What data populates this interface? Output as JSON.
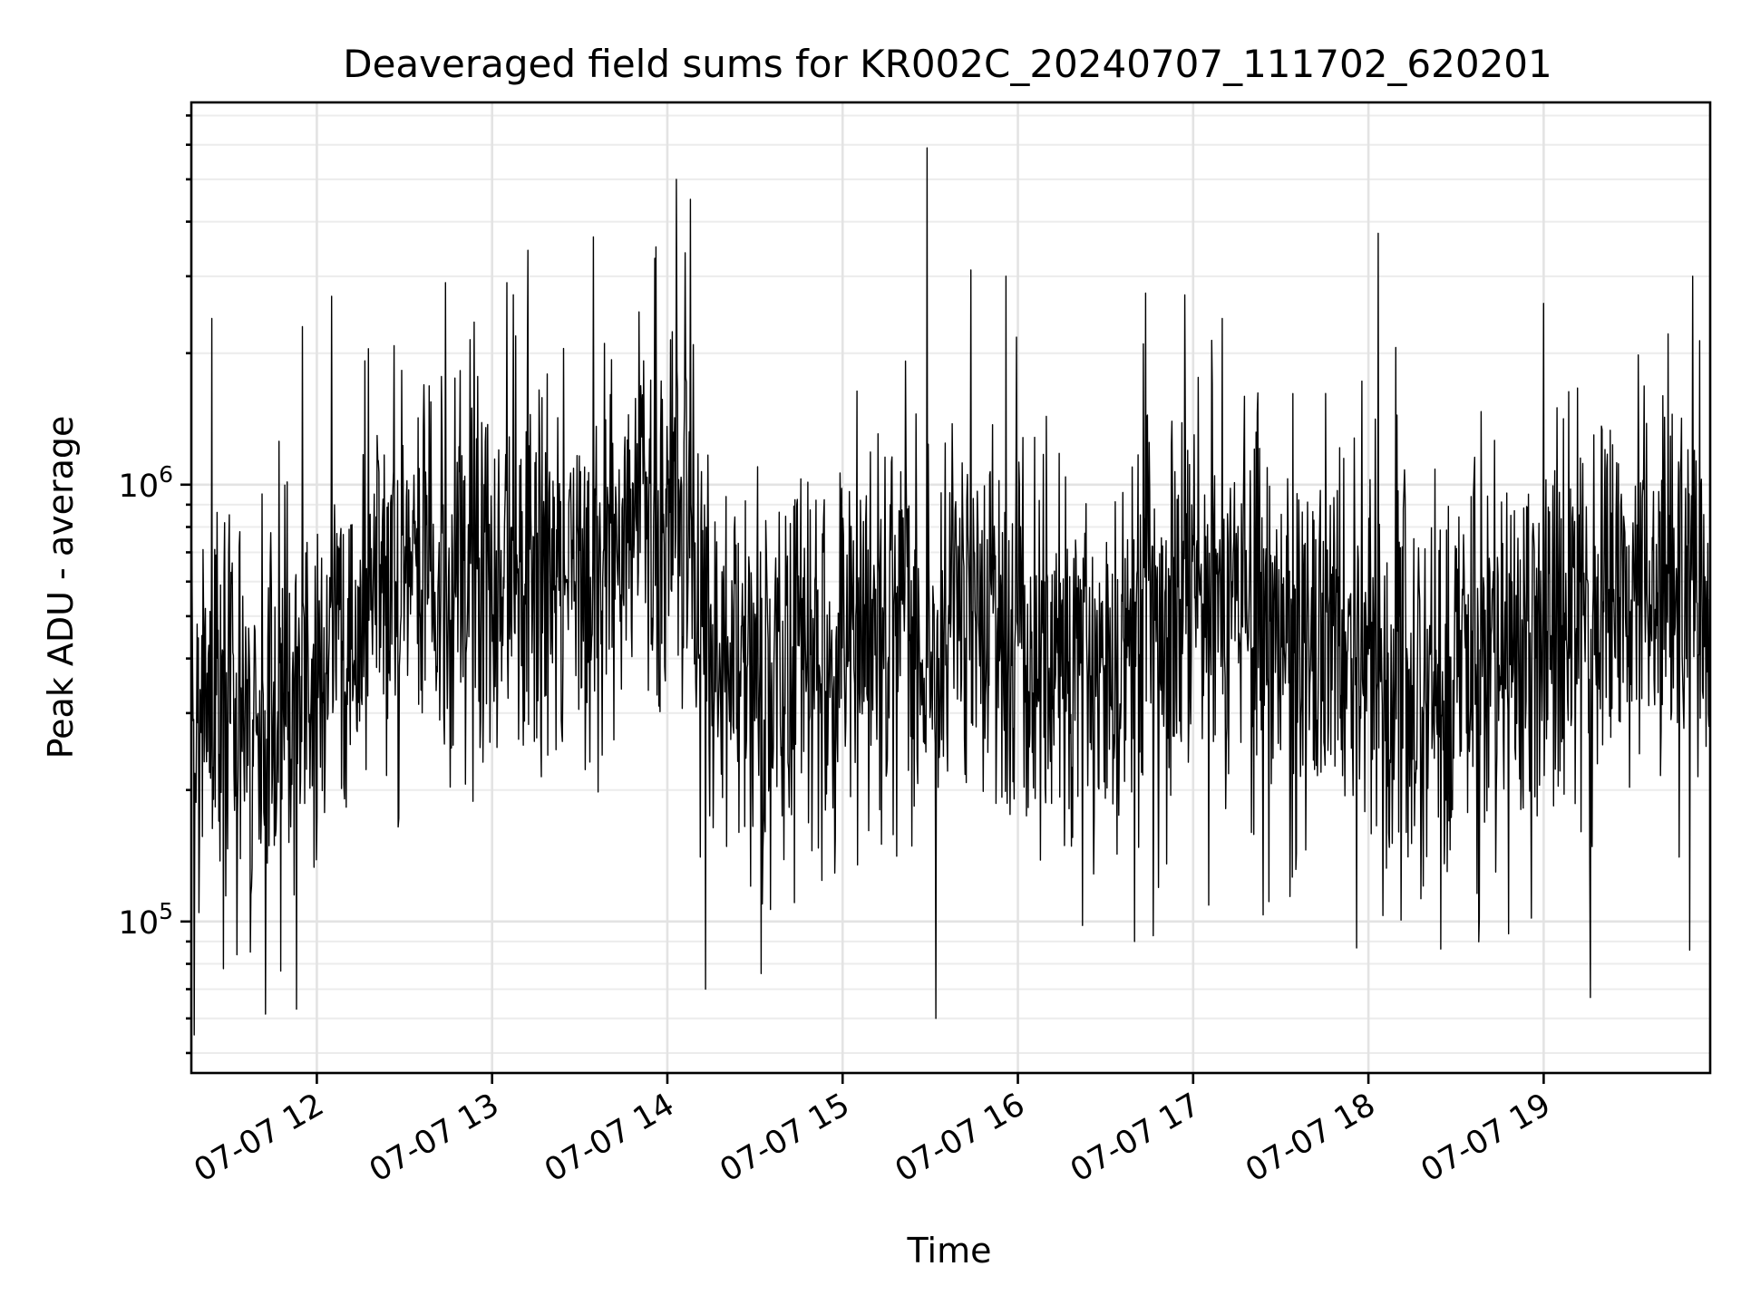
{
  "chart_data": {
    "type": "line",
    "title": "Deaveraged field sums for KR002C_20240707_111702_620201",
    "xlabel": "Time",
    "ylabel": "Peak ADU - average",
    "x_start": "2024-07-07T11:17:02",
    "x_end": "2024-07-07T19:57:00",
    "xlim": [
      "2024-07-07T11:17:02",
      "2024-07-07T19:57:00"
    ],
    "x_ticks": [
      "07-07 12",
      "07-07 13",
      "07-07 14",
      "07-07 15",
      "07-07 16",
      "07-07 17",
      "07-07 18",
      "07-07 19"
    ],
    "x_tick_times": [
      "2024-07-07T12:00:00",
      "2024-07-07T13:00:00",
      "2024-07-07T14:00:00",
      "2024-07-07T15:00:00",
      "2024-07-07T16:00:00",
      "2024-07-07T17:00:00",
      "2024-07-07T18:00:00",
      "2024-07-07T19:00:00"
    ],
    "y_scale": "log",
    "ylim": [
      45000,
      7500000
    ],
    "y_ticks": [
      {
        "base": "10",
        "exp": "5",
        "value": 100000
      },
      {
        "base": "10",
        "exp": "6",
        "value": 1000000
      }
    ],
    "grid": true,
    "legend": "none",
    "line_color": "#000000",
    "series": [
      {
        "x": [
          "2024-07-07T11:17:02",
          "2024-07-07T11:40:00",
          "2024-07-07T11:50:00",
          "2024-07-07T12:10:00",
          "2024-07-07T12:30:00",
          "2024-07-07T12:50:00",
          "2024-07-07T13:10:00",
          "2024-07-07T13:30:00",
          "2024-07-07T13:50:00",
          "2024-07-07T14:03:00",
          "2024-07-07T14:12:00",
          "2024-07-07T14:30:00",
          "2024-07-07T14:50:00",
          "2024-07-07T15:10:00",
          "2024-07-07T15:30:00",
          "2024-07-07T15:50:00",
          "2024-07-07T16:10:00",
          "2024-07-07T16:30:00",
          "2024-07-07T16:50:00",
          "2024-07-07T17:10:00",
          "2024-07-07T17:30:00",
          "2024-07-07T17:50:00",
          "2024-07-07T18:10:00",
          "2024-07-07T18:30:00",
          "2024-07-07T18:50:00",
          "2024-07-07T19:10:00",
          "2024-07-07T19:30:00",
          "2024-07-07T19:50:00",
          "2024-07-07T19:57:00"
        ],
        "values": [
          350000,
          280000,
          300000,
          420000,
          620000,
          700000,
          650000,
          720000,
          800000,
          900000,
          480000,
          380000,
          400000,
          420000,
          450000,
          520000,
          380000,
          400000,
          480000,
          560000,
          480000,
          430000,
          380000,
          360000,
          450000,
          520000,
          560000,
          620000,
          600000
        ],
        "spikes_high": [
          {
            "x": "2024-07-07T15:29:00",
            "value": 5900000
          },
          {
            "x": "2024-07-07T14:03:00",
            "value": 5000000
          },
          {
            "x": "2024-07-07T13:56:00",
            "value": 3500000
          },
          {
            "x": "2024-07-07T19:51:00",
            "value": 3000000
          },
          {
            "x": "2024-07-07T15:56:00",
            "value": 3000000
          },
          {
            "x": "2024-07-07T15:44:00",
            "value": 3100000
          },
          {
            "x": "2024-07-07T12:44:00",
            "value": 2900000
          },
          {
            "x": "2024-07-07T13:05:00",
            "value": 2900000
          },
          {
            "x": "2024-07-07T19:00:00",
            "value": 2600000
          },
          {
            "x": "2024-07-07T11:55:00",
            "value": 2300000
          },
          {
            "x": "2024-07-07T12:05:00",
            "value": 2700000
          },
          {
            "x": "2024-07-07T11:24:00",
            "value": 2400000
          },
          {
            "x": "2024-07-07T17:10:00",
            "value": 2400000
          },
          {
            "x": "2024-07-07T16:43:00",
            "value": 2100000
          }
        ],
        "spikes_low": [
          {
            "x": "2024-07-07T15:32:00",
            "value": 60000
          },
          {
            "x": "2024-07-07T11:53:00",
            "value": 63000
          },
          {
            "x": "2024-07-07T19:16:00",
            "value": 67000
          },
          {
            "x": "2024-07-07T14:13:00",
            "value": 70000
          },
          {
            "x": "2024-07-07T11:18:00",
            "value": 55000
          },
          {
            "x": "2024-07-07T14:32:00",
            "value": 76000
          },
          {
            "x": "2024-07-07T11:28:00",
            "value": 78000
          },
          {
            "x": "2024-07-07T17:56:00",
            "value": 87000
          },
          {
            "x": "2024-07-07T19:50:00",
            "value": 86000
          },
          {
            "x": "2024-07-07T16:40:00",
            "value": 90000
          }
        ]
      }
    ]
  }
}
